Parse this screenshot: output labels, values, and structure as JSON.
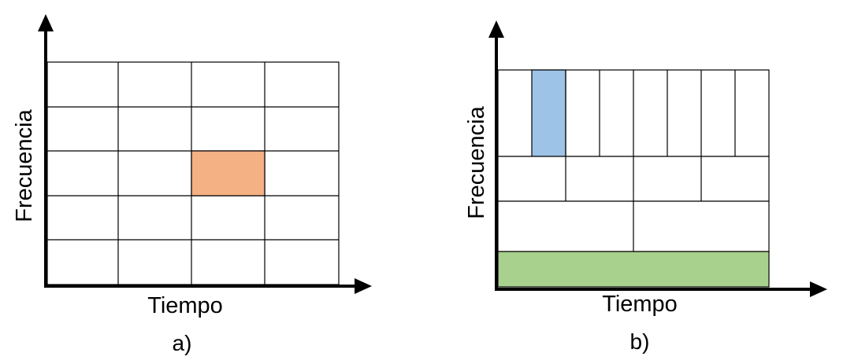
{
  "panel_a": {
    "caption": "a)",
    "xlabel": "Tiempo",
    "ylabel": "Frecuencia",
    "highlight_color": "#F4B183"
  },
  "panel_b": {
    "caption": "b)",
    "xlabel": "Tiempo",
    "ylabel": "Frecuencia",
    "highlight_top_color": "#9DC3E6",
    "highlight_bottom_color": "#A9D18E"
  }
}
